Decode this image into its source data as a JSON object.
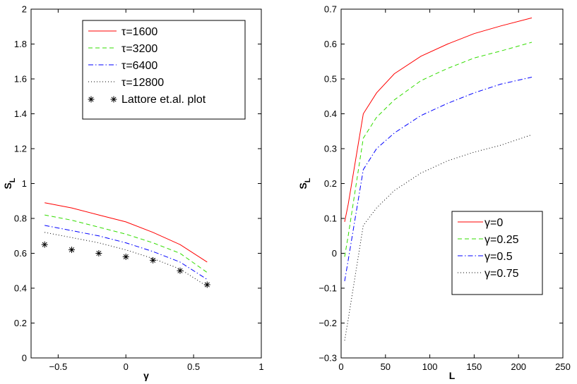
{
  "chart_data": [
    {
      "type": "line",
      "title": "",
      "xlabel": "γ",
      "ylabel": "S",
      "ylabel_sub": "L",
      "xlim": [
        -0.7,
        1
      ],
      "ylim": [
        0,
        2
      ],
      "xticks": [
        -0.5,
        0,
        0.5,
        1
      ],
      "xtick_labels": [
        "−0.5",
        "0",
        "0.5",
        "1"
      ],
      "yticks": [
        0,
        0.2,
        0.4,
        0.6,
        0.8,
        1,
        1.2,
        1.4,
        1.6,
        1.8,
        2
      ],
      "ytick_labels": [
        "0",
        "0.2",
        "0.4",
        "0.6",
        "0.8",
        "1",
        "1.2",
        "1.4",
        "1.6",
        "1.8",
        "2"
      ],
      "grid": false,
      "legend_position": "top-right",
      "series": [
        {
          "name": "τ=1600",
          "style": "solid",
          "color": "#ff0000",
          "x": [
            -0.6,
            -0.4,
            -0.2,
            0,
            0.2,
            0.4,
            0.6
          ],
          "y": [
            0.89,
            0.86,
            0.82,
            0.78,
            0.72,
            0.65,
            0.55
          ]
        },
        {
          "name": "τ=3200",
          "style": "dashed",
          "color": "#33dd00",
          "x": [
            -0.6,
            -0.4,
            -0.2,
            0,
            0.2,
            0.4,
            0.6
          ],
          "y": [
            0.82,
            0.79,
            0.75,
            0.71,
            0.66,
            0.6,
            0.49
          ]
        },
        {
          "name": "τ=6400",
          "style": "dashdot",
          "color": "#0000ff",
          "x": [
            -0.6,
            -0.4,
            -0.2,
            0,
            0.2,
            0.4,
            0.6
          ],
          "y": [
            0.76,
            0.73,
            0.7,
            0.66,
            0.61,
            0.55,
            0.45
          ]
        },
        {
          "name": "τ=12800",
          "style": "dotted",
          "color": "#000000",
          "x": [
            -0.6,
            -0.4,
            -0.2,
            0,
            0.2,
            0.4,
            0.6
          ],
          "y": [
            0.72,
            0.69,
            0.66,
            0.62,
            0.57,
            0.51,
            0.41
          ]
        },
        {
          "name": "Lattore et.al. plot",
          "style": "markers",
          "color": "#000000",
          "x": [
            -0.6,
            -0.4,
            -0.2,
            0,
            0.2,
            0.4,
            0.6
          ],
          "y": [
            0.65,
            0.62,
            0.6,
            0.58,
            0.56,
            0.5,
            0.42
          ]
        }
      ]
    },
    {
      "type": "line",
      "title": "",
      "xlabel": "L",
      "ylabel": "S",
      "ylabel_sub": "L",
      "xlim": [
        0,
        250
      ],
      "ylim": [
        -0.3,
        0.7
      ],
      "xticks": [
        0,
        50,
        100,
        150,
        200,
        250
      ],
      "xtick_labels": [
        "0",
        "50",
        "100",
        "150",
        "200",
        "250"
      ],
      "yticks": [
        -0.3,
        -0.2,
        -0.1,
        0,
        0.1,
        0.2,
        0.3,
        0.4,
        0.5,
        0.6,
        0.7
      ],
      "ytick_labels": [
        "−0.3",
        "−0.2",
        "−0.1",
        "0",
        "0.1",
        "0.2",
        "0.3",
        "0.4",
        "0.5",
        "0.6",
        "0.7"
      ],
      "grid": false,
      "legend_position": "bottom-right",
      "series": [
        {
          "name": "γ=0",
          "style": "solid",
          "color": "#ff0000",
          "x": [
            4,
            8,
            25,
            40,
            60,
            90,
            120,
            150,
            180,
            215
          ],
          "y": [
            0.09,
            0.14,
            0.4,
            0.46,
            0.515,
            0.565,
            0.6,
            0.63,
            0.652,
            0.675
          ]
        },
        {
          "name": "γ=0.25",
          "style": "dashed",
          "color": "#33dd00",
          "x": [
            4,
            8,
            25,
            40,
            60,
            90,
            120,
            150,
            180,
            215
          ],
          "y": [
            -0.01,
            0.05,
            0.33,
            0.39,
            0.44,
            0.495,
            0.53,
            0.56,
            0.58,
            0.605
          ]
        },
        {
          "name": "γ=0.5",
          "style": "dashdot",
          "color": "#0000ff",
          "x": [
            4,
            8,
            25,
            40,
            60,
            90,
            120,
            150,
            180,
            215
          ],
          "y": [
            -0.08,
            -0.02,
            0.24,
            0.3,
            0.345,
            0.395,
            0.43,
            0.46,
            0.485,
            0.505
          ]
        },
        {
          "name": "γ=0.75",
          "style": "dotted",
          "color": "#000000",
          "x": [
            4,
            8,
            25,
            40,
            60,
            90,
            120,
            150,
            180,
            215
          ],
          "y": [
            -0.25,
            -0.19,
            0.08,
            0.13,
            0.18,
            0.23,
            0.265,
            0.29,
            0.31,
            0.34
          ]
        }
      ]
    }
  ]
}
